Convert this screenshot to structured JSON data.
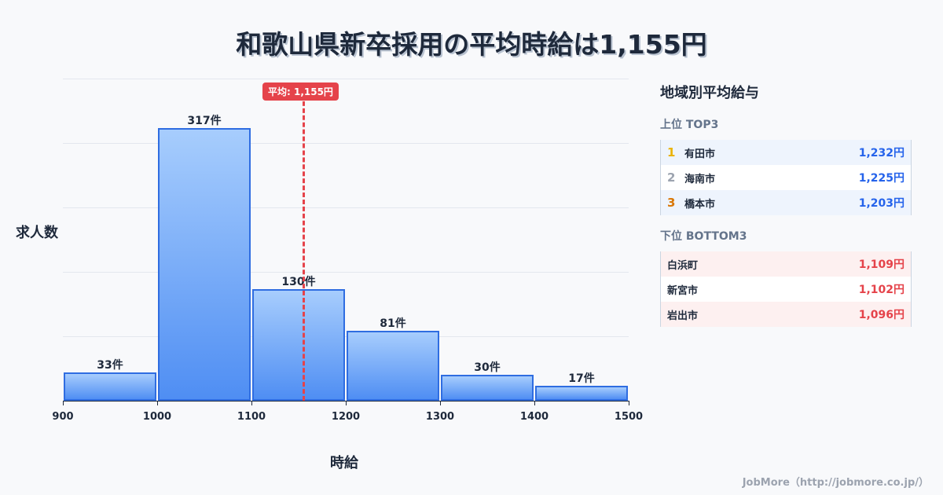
{
  "title": "和歌山県新卒採用の平均時給は1,155円",
  "chart_data": {
    "type": "bar",
    "title": "和歌山県新卒採用の平均時給は1,155円",
    "xlabel": "時給",
    "ylabel": "求人数",
    "bins": [
      [
        900,
        1000
      ],
      [
        1000,
        1100
      ],
      [
        1100,
        1200
      ],
      [
        1200,
        1300
      ],
      [
        1300,
        1400
      ],
      [
        1400,
        1500
      ]
    ],
    "categories": [
      "900-1000",
      "1000-1100",
      "1100-1200",
      "1200-1300",
      "1300-1400",
      "1400-1500"
    ],
    "values": [
      33,
      317,
      130,
      81,
      30,
      17
    ],
    "value_labels": [
      "33件",
      "317件",
      "130件",
      "81件",
      "30件",
      "17件"
    ],
    "x_ticks": [
      "900",
      "1000",
      "1100",
      "1200",
      "1300",
      "1400",
      "1500"
    ],
    "xlim": [
      900,
      1500
    ],
    "ylim": [
      0,
      375
    ],
    "grid": true,
    "mean": 1155,
    "mean_label": "平均: 1,155円",
    "colors": {
      "bar_fill_top": "#a7cdfd",
      "bar_fill_bottom": "#4f8ef3",
      "bar_edge": "#2f6de1",
      "mean_line": "#e5434a"
    }
  },
  "panel": {
    "title": "地域別平均給与",
    "top": {
      "title": "上位 TOP3",
      "items": [
        {
          "rank": "1",
          "city": "有田市",
          "value": "1,232円",
          "rank_color": "#eab308"
        },
        {
          "rank": "2",
          "city": "海南市",
          "value": "1,225円",
          "rank_color": "#9ca3af"
        },
        {
          "rank": "3",
          "city": "橋本市",
          "value": "1,203円",
          "rank_color": "#d97706"
        }
      ]
    },
    "bottom": {
      "title": "下位 BOTTOM3",
      "items": [
        {
          "city": "白浜町",
          "value": "1,109円"
        },
        {
          "city": "新宮市",
          "value": "1,102円"
        },
        {
          "city": "岩出市",
          "value": "1,096円"
        }
      ]
    }
  },
  "footer": "JobMore（http://jobmore.co.jp/）"
}
